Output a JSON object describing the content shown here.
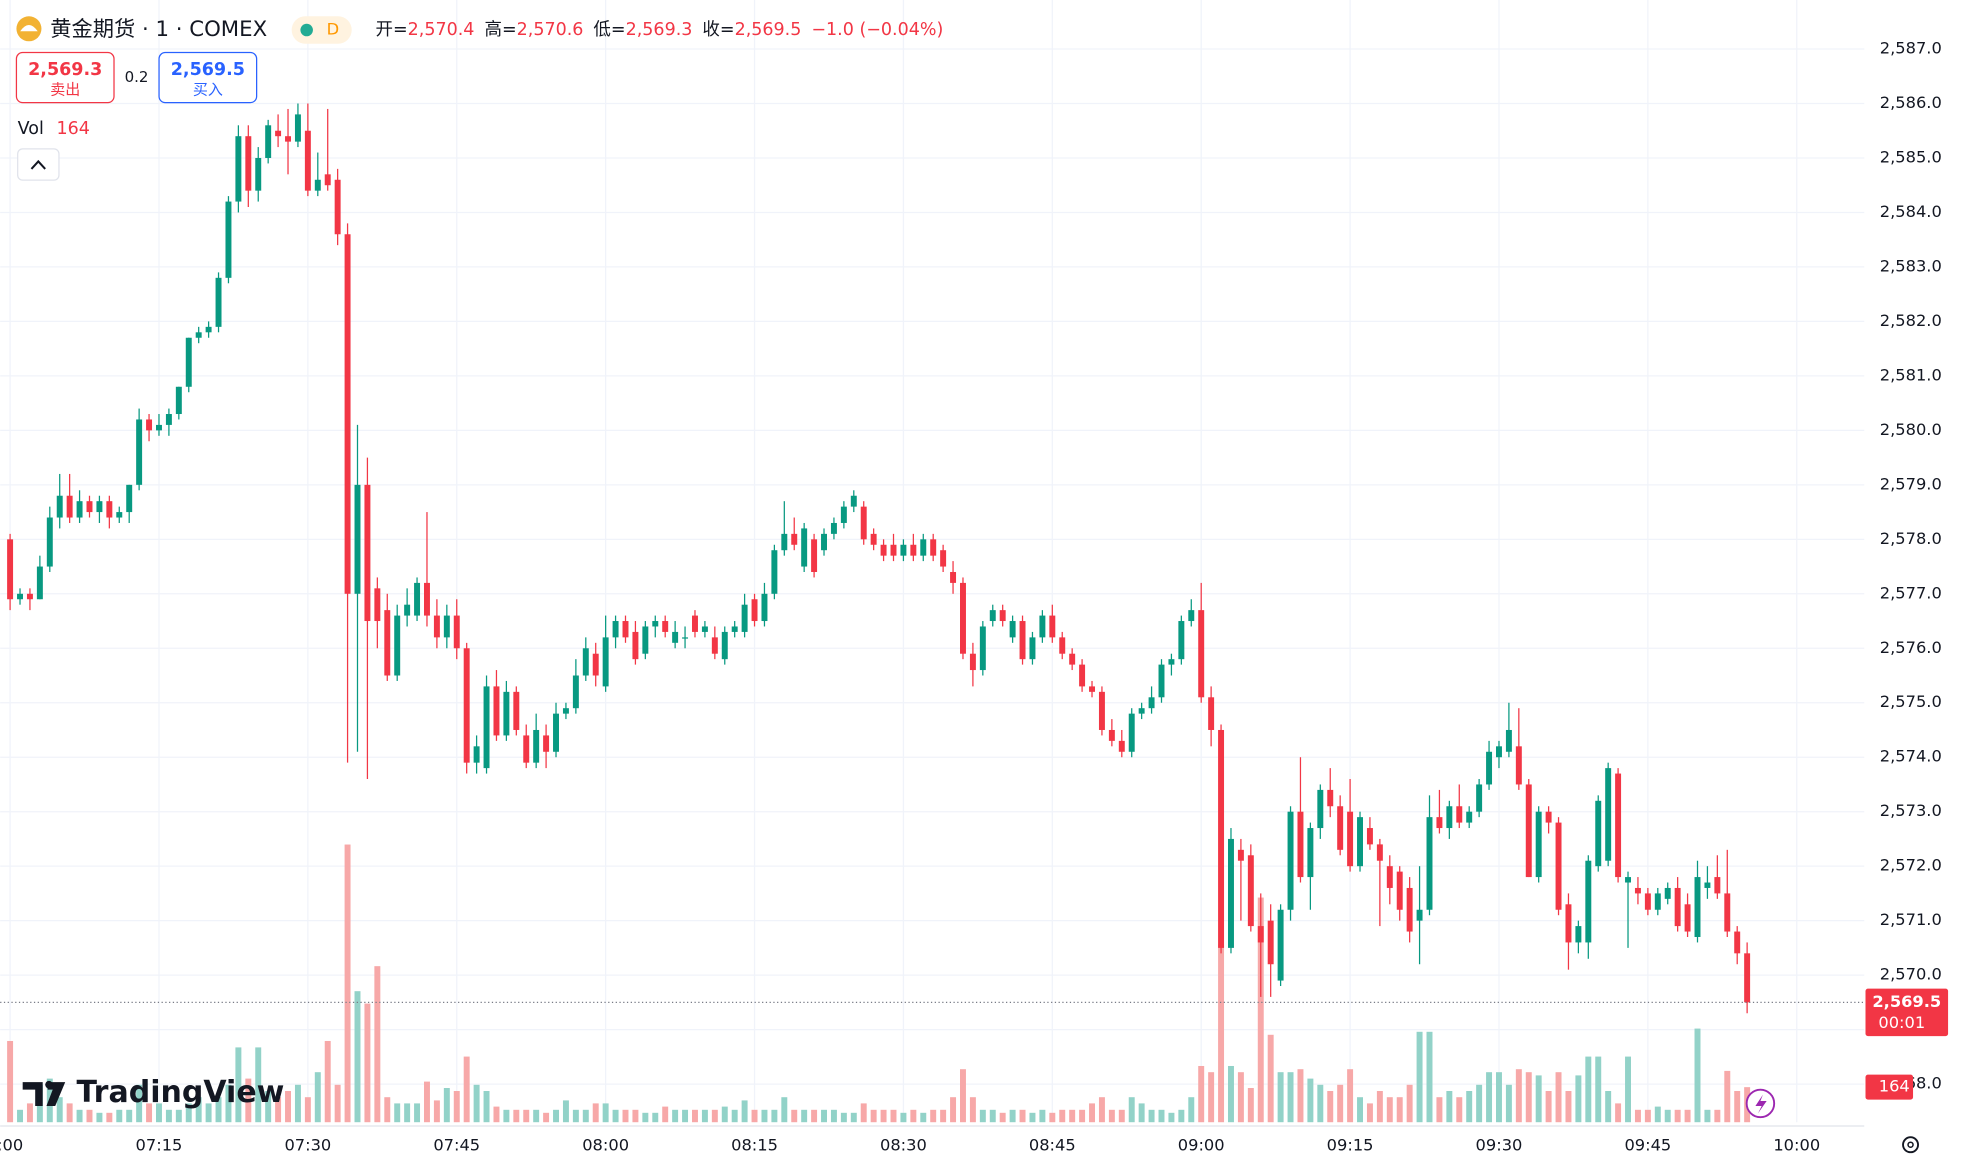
{
  "header": {
    "symbol": "黄金期货 · 1 · COMEX",
    "badge": "D",
    "ohlc": [
      {
        "label": "开=",
        "value": "2,570.4"
      },
      {
        "label": "高=",
        "value": "2,570.6"
      },
      {
        "label": "低=",
        "value": "2,569.3"
      },
      {
        "label": "收=",
        "value": "2,569.5"
      }
    ],
    "change": "−1.0 (−0.04%)",
    "sell": {
      "price": "2,569.3",
      "label": "卖出"
    },
    "spread": "0.2",
    "buy": {
      "price": "2,569.5",
      "label": "买入"
    },
    "volume_label": "Vol"
  },
  "branding": "TradingView",
  "chart_data": {
    "type": "candlestick",
    "up_color": "#089981",
    "down_color": "#f23645",
    "volume_up_color": "#92d2c8",
    "volume_down_color": "#f7a8a8",
    "ohlc": [
      [
        2578.0,
        2578.1,
        2576.7,
        2576.9
      ],
      [
        2576.9,
        2577.1,
        2576.8,
        2577.0
      ],
      [
        2577.0,
        2577.1,
        2576.7,
        2576.9
      ],
      [
        2576.9,
        2577.7,
        2576.9,
        2577.5
      ],
      [
        2577.5,
        2578.6,
        2577.4,
        2578.4
      ],
      [
        2578.4,
        2579.2,
        2578.2,
        2578.8
      ],
      [
        2578.8,
        2579.2,
        2578.3,
        2578.4
      ],
      [
        2578.4,
        2578.9,
        2578.3,
        2578.7
      ],
      [
        2578.7,
        2578.8,
        2578.4,
        2578.5
      ],
      [
        2578.5,
        2578.8,
        2578.3,
        2578.7
      ],
      [
        2578.7,
        2578.8,
        2578.2,
        2578.4
      ],
      [
        2578.4,
        2578.6,
        2578.3,
        2578.5
      ],
      [
        2578.5,
        2579.0,
        2578.3,
        2579.0
      ],
      [
        2579.0,
        2580.4,
        2578.9,
        2580.2
      ],
      [
        2580.2,
        2580.3,
        2579.8,
        2580.0
      ],
      [
        2580.0,
        2580.3,
        2579.9,
        2580.1
      ],
      [
        2580.1,
        2580.4,
        2579.9,
        2580.3
      ],
      [
        2580.3,
        2580.8,
        2580.2,
        2580.8
      ],
      [
        2580.8,
        2581.7,
        2580.7,
        2581.7
      ],
      [
        2581.7,
        2581.9,
        2581.6,
        2581.8
      ],
      [
        2581.8,
        2582.0,
        2581.7,
        2581.9
      ],
      [
        2581.9,
        2582.9,
        2581.8,
        2582.8
      ],
      [
        2582.8,
        2584.3,
        2582.7,
        2584.2
      ],
      [
        2584.2,
        2585.6,
        2584.0,
        2585.4
      ],
      [
        2585.4,
        2585.6,
        2584.1,
        2584.4
      ],
      [
        2584.4,
        2585.2,
        2584.2,
        2585.0
      ],
      [
        2585.0,
        2585.7,
        2584.9,
        2585.6
      ],
      [
        2585.5,
        2585.8,
        2585.2,
        2585.4
      ],
      [
        2585.4,
        2585.9,
        2584.7,
        2585.3
      ],
      [
        2585.3,
        2586.0,
        2585.2,
        2585.8
      ],
      [
        2585.5,
        2586.0,
        2584.3,
        2584.4
      ],
      [
        2584.4,
        2585.1,
        2584.3,
        2584.6
      ],
      [
        2584.7,
        2585.9,
        2584.4,
        2584.5
      ],
      [
        2584.6,
        2584.8,
        2583.4,
        2583.6
      ],
      [
        2583.6,
        2583.8,
        2573.9,
        2577.0
      ],
      [
        2577.0,
        2580.1,
        2574.1,
        2579.0
      ],
      [
        2579.0,
        2579.5,
        2573.6,
        2576.5
      ],
      [
        2577.1,
        2577.3,
        2576.0,
        2576.5
      ],
      [
        2576.7,
        2577.0,
        2575.4,
        2575.5
      ],
      [
        2575.5,
        2576.8,
        2575.4,
        2576.6
      ],
      [
        2576.6,
        2577.1,
        2576.4,
        2576.8
      ],
      [
        2576.6,
        2577.3,
        2576.5,
        2577.2
      ],
      [
        2577.2,
        2578.5,
        2576.4,
        2576.6
      ],
      [
        2576.6,
        2576.9,
        2576.0,
        2576.2
      ],
      [
        2576.2,
        2576.8,
        2576.0,
        2576.6
      ],
      [
        2576.6,
        2576.9,
        2575.8,
        2576.0
      ],
      [
        2576.0,
        2576.1,
        2573.7,
        2573.9
      ],
      [
        2573.9,
        2574.4,
        2573.7,
        2574.2
      ],
      [
        2573.8,
        2575.5,
        2573.7,
        2575.3
      ],
      [
        2575.3,
        2575.6,
        2574.3,
        2574.4
      ],
      [
        2574.4,
        2575.4,
        2574.3,
        2575.2
      ],
      [
        2575.2,
        2575.3,
        2574.4,
        2574.5
      ],
      [
        2574.4,
        2574.6,
        2573.8,
        2573.9
      ],
      [
        2573.9,
        2574.8,
        2573.8,
        2574.5
      ],
      [
        2574.4,
        2574.6,
        2573.8,
        2574.1
      ],
      [
        2574.1,
        2575.0,
        2574.0,
        2574.8
      ],
      [
        2574.8,
        2575.0,
        2574.7,
        2574.9
      ],
      [
        2574.9,
        2575.8,
        2574.8,
        2575.5
      ],
      [
        2575.5,
        2576.2,
        2575.4,
        2576.0
      ],
      [
        2575.9,
        2576.1,
        2575.3,
        2575.5
      ],
      [
        2575.3,
        2576.6,
        2575.2,
        2576.2
      ],
      [
        2576.2,
        2576.6,
        2576.0,
        2576.5
      ],
      [
        2576.5,
        2576.6,
        2576.1,
        2576.2
      ],
      [
        2576.3,
        2576.5,
        2575.7,
        2575.8
      ],
      [
        2575.9,
        2576.5,
        2575.8,
        2576.4
      ],
      [
        2576.4,
        2576.6,
        2576.2,
        2576.5
      ],
      [
        2576.5,
        2576.6,
        2576.2,
        2576.3
      ],
      [
        2576.1,
        2576.5,
        2576.0,
        2576.3
      ],
      [
        2576.2,
        2576.4,
        2576.0,
        2576.2
      ],
      [
        2576.6,
        2576.7,
        2576.2,
        2576.3
      ],
      [
        2576.3,
        2576.5,
        2576.2,
        2576.4
      ],
      [
        2576.2,
        2576.4,
        2575.8,
        2575.9
      ],
      [
        2575.8,
        2576.4,
        2575.7,
        2576.3
      ],
      [
        2576.3,
        2576.5,
        2576.2,
        2576.4
      ],
      [
        2576.3,
        2577.0,
        2576.2,
        2576.8
      ],
      [
        2576.9,
        2577.0,
        2576.4,
        2576.5
      ],
      [
        2576.5,
        2577.2,
        2576.4,
        2577.0
      ],
      [
        2577.0,
        2577.9,
        2576.9,
        2577.8
      ],
      [
        2577.8,
        2578.7,
        2577.7,
        2578.1
      ],
      [
        2578.1,
        2578.4,
        2577.8,
        2577.9
      ],
      [
        2577.5,
        2578.3,
        2577.4,
        2578.2
      ],
      [
        2578.0,
        2578.1,
        2577.3,
        2577.4
      ],
      [
        2577.8,
        2578.2,
        2577.7,
        2578.1
      ],
      [
        2578.1,
        2578.4,
        2578.0,
        2578.3
      ],
      [
        2578.3,
        2578.7,
        2578.2,
        2578.6
      ],
      [
        2578.6,
        2578.9,
        2578.5,
        2578.8
      ],
      [
        2578.6,
        2578.7,
        2577.9,
        2578.0
      ],
      [
        2578.1,
        2578.2,
        2577.8,
        2577.9
      ],
      [
        2577.9,
        2578.0,
        2577.6,
        2577.7
      ],
      [
        2577.9,
        2578.1,
        2577.6,
        2577.7
      ],
      [
        2577.7,
        2578.0,
        2577.6,
        2577.9
      ],
      [
        2577.9,
        2578.1,
        2577.6,
        2577.7
      ],
      [
        2577.7,
        2578.1,
        2577.6,
        2578.0
      ],
      [
        2578.0,
        2578.1,
        2577.6,
        2577.7
      ],
      [
        2577.8,
        2577.9,
        2577.4,
        2577.5
      ],
      [
        2577.4,
        2577.6,
        2577.0,
        2577.2
      ],
      [
        2577.2,
        2577.3,
        2575.8,
        2575.9
      ],
      [
        2575.9,
        2576.1,
        2575.3,
        2575.6
      ],
      [
        2575.6,
        2576.5,
        2575.5,
        2576.4
      ],
      [
        2576.5,
        2576.8,
        2576.4,
        2576.7
      ],
      [
        2576.7,
        2576.8,
        2576.4,
        2576.5
      ],
      [
        2576.2,
        2576.6,
        2576.1,
        2576.5
      ],
      [
        2576.5,
        2576.6,
        2575.7,
        2575.8
      ],
      [
        2575.8,
        2576.3,
        2575.7,
        2576.2
      ],
      [
        2576.2,
        2576.7,
        2576.1,
        2576.6
      ],
      [
        2576.6,
        2576.8,
        2576.1,
        2576.2
      ],
      [
        2576.2,
        2576.3,
        2575.8,
        2575.9
      ],
      [
        2575.9,
        2576.0,
        2575.6,
        2575.7
      ],
      [
        2575.7,
        2575.8,
        2575.2,
        2575.3
      ],
      [
        2575.3,
        2575.4,
        2575.1,
        2575.2
      ],
      [
        2575.2,
        2575.3,
        2574.4,
        2574.5
      ],
      [
        2574.5,
        2574.7,
        2574.2,
        2574.3
      ],
      [
        2574.3,
        2574.5,
        2574.0,
        2574.1
      ],
      [
        2574.1,
        2574.9,
        2574.0,
        2574.8
      ],
      [
        2574.8,
        2575.0,
        2574.7,
        2574.9
      ],
      [
        2574.9,
        2575.3,
        2574.8,
        2575.1
      ],
      [
        2575.1,
        2575.8,
        2575.0,
        2575.7
      ],
      [
        2575.7,
        2575.9,
        2575.5,
        2575.8
      ],
      [
        2575.8,
        2576.6,
        2575.7,
        2576.5
      ],
      [
        2576.5,
        2576.9,
        2576.4,
        2576.7
      ],
      [
        2576.7,
        2577.2,
        2575.0,
        2575.1
      ],
      [
        2575.1,
        2575.3,
        2574.2,
        2574.5
      ],
      [
        2574.5,
        2574.6,
        2570.4,
        2570.5
      ],
      [
        2570.5,
        2572.7,
        2570.4,
        2572.5
      ],
      [
        2572.3,
        2572.5,
        2571.0,
        2572.1
      ],
      [
        2572.2,
        2572.4,
        2570.8,
        2570.9
      ],
      [
        2570.9,
        2571.5,
        2569.6,
        2570.6
      ],
      [
        2571.0,
        2571.3,
        2569.6,
        2570.2
      ],
      [
        2569.9,
        2571.3,
        2569.8,
        2571.2
      ],
      [
        2571.2,
        2573.1,
        2571.0,
        2573.0
      ],
      [
        2573.0,
        2574.0,
        2571.7,
        2571.8
      ],
      [
        2571.8,
        2572.8,
        2571.2,
        2572.7
      ],
      [
        2572.7,
        2573.5,
        2572.5,
        2573.4
      ],
      [
        2573.4,
        2573.8,
        2572.9,
        2573.1
      ],
      [
        2573.1,
        2573.3,
        2572.2,
        2572.3
      ],
      [
        2573.0,
        2573.6,
        2571.9,
        2572.0
      ],
      [
        2572.0,
        2573.0,
        2571.9,
        2572.9
      ],
      [
        2572.7,
        2572.9,
        2572.3,
        2572.4
      ],
      [
        2572.4,
        2572.5,
        2570.9,
        2572.1
      ],
      [
        2572.0,
        2572.2,
        2571.3,
        2571.6
      ],
      [
        2571.9,
        2572.0,
        2571.0,
        2571.2
      ],
      [
        2571.6,
        2571.8,
        2570.6,
        2570.8
      ],
      [
        2571.0,
        2572.0,
        2570.2,
        2571.2
      ],
      [
        2571.2,
        2573.3,
        2571.1,
        2572.9
      ],
      [
        2572.9,
        2573.4,
        2572.6,
        2572.7
      ],
      [
        2572.7,
        2573.2,
        2572.5,
        2573.1
      ],
      [
        2573.1,
        2573.5,
        2572.7,
        2572.8
      ],
      [
        2572.8,
        2573.1,
        2572.7,
        2573.0
      ],
      [
        2573.0,
        2573.6,
        2572.9,
        2573.5
      ],
      [
        2573.5,
        2574.3,
        2573.4,
        2574.1
      ],
      [
        2574.0,
        2574.3,
        2573.8,
        2574.2
      ],
      [
        2574.1,
        2575.0,
        2574.0,
        2574.5
      ],
      [
        2574.2,
        2574.9,
        2573.4,
        2573.5
      ],
      [
        2573.5,
        2573.6,
        2571.8,
        2571.8
      ],
      [
        2571.8,
        2573.1,
        2571.7,
        2573.0
      ],
      [
        2573.0,
        2573.1,
        2572.6,
        2572.8
      ],
      [
        2572.8,
        2572.9,
        2571.1,
        2571.2
      ],
      [
        2571.3,
        2571.5,
        2570.1,
        2570.6
      ],
      [
        2570.6,
        2571.0,
        2570.4,
        2570.9
      ],
      [
        2570.6,
        2572.2,
        2570.3,
        2572.1
      ],
      [
        2572.0,
        2573.3,
        2571.9,
        2573.2
      ],
      [
        2572.1,
        2573.9,
        2572.0,
        2573.8
      ],
      [
        2573.7,
        2573.8,
        2571.7,
        2571.8
      ],
      [
        2571.7,
        2571.9,
        2570.5,
        2571.8
      ],
      [
        2571.6,
        2571.8,
        2571.3,
        2571.5
      ],
      [
        2571.5,
        2571.6,
        2571.1,
        2571.2
      ],
      [
        2571.2,
        2571.6,
        2571.1,
        2571.5
      ],
      [
        2571.4,
        2571.7,
        2571.3,
        2571.6
      ],
      [
        2571.6,
        2571.8,
        2570.8,
        2570.9
      ],
      [
        2571.3,
        2571.5,
        2570.7,
        2570.8
      ],
      [
        2570.7,
        2572.1,
        2570.6,
        2571.8
      ],
      [
        2571.6,
        2572.0,
        2571.4,
        2571.7
      ],
      [
        2571.8,
        2572.2,
        2571.4,
        2571.5
      ],
      [
        2571.5,
        2572.3,
        2570.7,
        2570.8
      ],
      [
        2570.8,
        2570.9,
        2570.2,
        2570.4
      ],
      [
        2570.4,
        2570.6,
        2569.3,
        2569.5
      ]
    ],
    "volume": [
      380,
      58,
      88,
      175,
      204,
      117,
      88,
      58,
      58,
      44,
      44,
      58,
      58,
      175,
      88,
      88,
      58,
      58,
      88,
      117,
      88,
      117,
      175,
      350,
      204,
      350,
      146,
      117,
      146,
      175,
      117,
      234,
      380,
      175,
      1299,
      613,
      555,
      730,
      117,
      88,
      88,
      88,
      190,
      102,
      160,
      146,
      307,
      175,
      146,
      73,
      58,
      58,
      58,
      58,
      44,
      58,
      102,
      58,
      58,
      88,
      88,
      58,
      58,
      58,
      44,
      44,
      73,
      58,
      58,
      58,
      58,
      58,
      73,
      58,
      102,
      58,
      58,
      58,
      117,
      58,
      58,
      58,
      58,
      58,
      44,
      44,
      88,
      58,
      58,
      58,
      44,
      58,
      44,
      58,
      58,
      117,
      248,
      117,
      58,
      58,
      44,
      58,
      58,
      44,
      58,
      44,
      58,
      58,
      58,
      88,
      117,
      58,
      58,
      117,
      88,
      58,
      58,
      44,
      58,
      117,
      263,
      234,
      832,
      263,
      234,
      160,
      1051,
      409,
      234,
      234,
      248,
      204,
      175,
      146,
      175,
      248,
      117,
      88,
      146,
      117,
      117,
      175,
      423,
      423,
      117,
      146,
      117,
      146,
      175,
      234,
      234,
      175,
      248,
      234,
      219,
      146,
      234,
      146,
      219,
      307,
      307,
      146,
      88,
      307,
      58,
      58,
      73,
      58,
      58,
      58,
      438,
      58,
      58,
      240,
      146,
      164
    ],
    "xlim": [
      -1,
      186.8
    ],
    "xticks": [
      {
        "value": 0,
        "label": ":00"
      },
      {
        "value": 15,
        "label": "07:15"
      },
      {
        "value": 30,
        "label": "07:30"
      },
      {
        "value": 45,
        "label": "07:45"
      },
      {
        "value": 60,
        "label": "08:00"
      },
      {
        "value": 75,
        "label": "08:15"
      },
      {
        "value": 90,
        "label": "08:30"
      },
      {
        "value": 105,
        "label": "08:45"
      },
      {
        "value": 120,
        "label": "09:00"
      },
      {
        "value": 135,
        "label": "09:15"
      },
      {
        "value": 150,
        "label": "09:30"
      },
      {
        "value": 165,
        "label": "09:45"
      },
      {
        "value": 180,
        "label": "10:00"
      }
    ],
    "ylim": [
      2567.3,
      2587.9
    ],
    "yticks": [
      {
        "value": 2568,
        "label": "2,568.0"
      },
      {
        "value": 2569,
        "label": "2,569.0"
      },
      {
        "value": 2570,
        "label": "2,570.0"
      },
      {
        "value": 2571,
        "label": "2,571.0"
      },
      {
        "value": 2572,
        "label": "2,572.0"
      },
      {
        "value": 2573,
        "label": "2,573.0"
      },
      {
        "value": 2574,
        "label": "2,574.0"
      },
      {
        "value": 2575,
        "label": "2,575.0"
      },
      {
        "value": 2576,
        "label": "2,576.0"
      },
      {
        "value": 2577,
        "label": "2,577.0"
      },
      {
        "value": 2578,
        "label": "2,578.0"
      },
      {
        "value": 2579,
        "label": "2,579.0"
      },
      {
        "value": 2580,
        "label": "2,580.0"
      },
      {
        "value": 2581,
        "label": "2,581.0"
      },
      {
        "value": 2582,
        "label": "2,582.0"
      },
      {
        "value": 2583,
        "label": "2,583.0"
      },
      {
        "value": 2584,
        "label": "2,584.0"
      },
      {
        "value": 2585,
        "label": "2,585.0"
      },
      {
        "value": 2586,
        "label": "2,586.0"
      },
      {
        "value": 2587,
        "label": "2,587.0"
      }
    ],
    "volume_ylim": [
      0,
      5250
    ],
    "grid": true,
    "last_price": 2569.5,
    "last_price_label": "2,569.5",
    "countdown": "00:01"
  }
}
